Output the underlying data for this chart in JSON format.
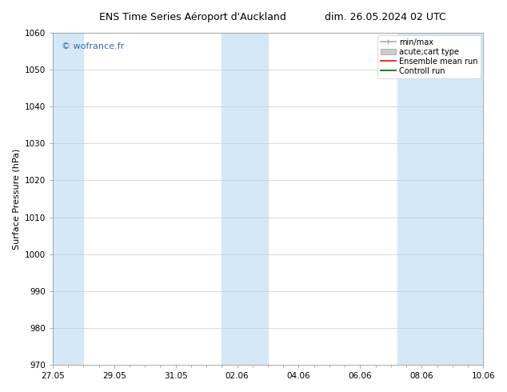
{
  "title_left": "ENS Time Series Aéroport d'Auckland",
  "title_right": "dim. 26.05.2024 02 UTC",
  "ylabel": "Surface Pressure (hPa)",
  "ylim": [
    970,
    1060
  ],
  "yticks": [
    970,
    980,
    990,
    1000,
    1010,
    1020,
    1030,
    1040,
    1050,
    1060
  ],
  "xtick_labels": [
    "27.05",
    "29.05",
    "31.05",
    "02.06",
    "04.06",
    "06.06",
    "08.06",
    "10.06"
  ],
  "shaded_bands_days": [
    {
      "day_start": 0,
      "day_end": 1,
      "color": "#d6e9f8"
    },
    {
      "day_start": 6,
      "day_end": 7,
      "color": "#d6e9f8"
    },
    {
      "day_start": 12,
      "day_end": 13,
      "color": "#d6e9f8"
    },
    {
      "day_start": 13,
      "day_end": 14,
      "color": "#d6e9f8"
    }
  ],
  "watermark": "© wofrance.fr",
  "watermark_color": "#3366bb",
  "legend_entries": [
    {
      "label": "min/max"
    },
    {
      "label": "acute;cart type"
    },
    {
      "label": "Ensemble mean run"
    },
    {
      "label": "Controll run"
    }
  ],
  "background_color": "#ffffff",
  "plot_bg_color": "#ffffff",
  "grid_color": "#cccccc",
  "title_fontsize": 9,
  "label_fontsize": 8,
  "tick_fontsize": 7.5,
  "legend_fontsize": 7
}
